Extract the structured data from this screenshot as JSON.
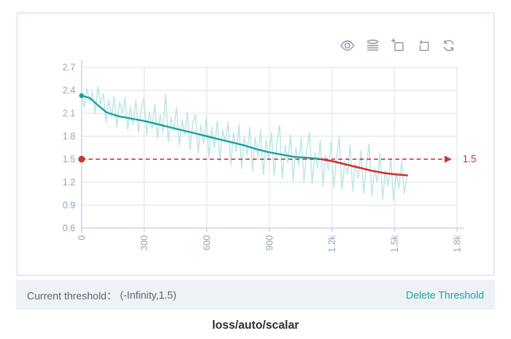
{
  "title": "loss/auto/scalar",
  "toolbar": {
    "icons": [
      {
        "name": "eye-icon"
      },
      {
        "name": "data-view-icon"
      },
      {
        "name": "zoom-select-icon"
      },
      {
        "name": "restore-icon"
      },
      {
        "name": "refresh-icon"
      }
    ]
  },
  "threshold_bar": {
    "label": "Current threshold：",
    "value": "(-Infinity,1.5)",
    "delete_label": "Delete Threshold"
  },
  "colors": {
    "accent_teal": "#17a0a0",
    "raw_line": "#bde7e4",
    "threshold_red": "#c93733",
    "below_threshold_red": "#d3302a",
    "grid": "#e2e3e6",
    "axis": "#c7d1e4",
    "tick_label": "#98a3b8",
    "bar_background": "#eef1f6"
  },
  "chart_data": {
    "type": "line",
    "title": "loss/auto/scalar",
    "xlim": [
      0,
      1800
    ],
    "ylim": [
      0.6,
      2.7
    ],
    "grid": true,
    "x_ticks": [
      {
        "value": 0,
        "label": "0"
      },
      {
        "value": 300,
        "label": "300"
      },
      {
        "value": 600,
        "label": "600"
      },
      {
        "value": 900,
        "label": "900"
      },
      {
        "value": 1200,
        "label": "1.2k"
      },
      {
        "value": 1500,
        "label": "1.5k"
      },
      {
        "value": 1800,
        "label": "1.8k"
      }
    ],
    "y_ticks": [
      {
        "value": 2.7,
        "label": "2.7"
      },
      {
        "value": 2.4,
        "label": "2.4"
      },
      {
        "value": 2.1,
        "label": "2.1"
      },
      {
        "value": 1.8,
        "label": "1.8"
      },
      {
        "value": 1.5,
        "label": "1.5"
      },
      {
        "value": 1.2,
        "label": "1.2"
      },
      {
        "value": 0.9,
        "label": "0.9"
      },
      {
        "value": 0.6,
        "label": "0.6"
      }
    ],
    "threshold": {
      "value": 1.5,
      "label": "1.5",
      "start_x": 0,
      "end_x": 1740,
      "color": "#c93733",
      "dot": true,
      "arrow": true
    },
    "series": [
      {
        "name": "raw-scalar",
        "color": "#bde7e4",
        "width": 1.4,
        "opacity": 1,
        "points": [
          [
            0,
            2.36
          ],
          [
            13,
            2.18
          ],
          [
            26,
            2.42
          ],
          [
            39,
            2.25
          ],
          [
            52,
            2.38
          ],
          [
            65,
            2.1
          ],
          [
            78,
            2.45
          ],
          [
            91,
            2.22
          ],
          [
            104,
            2.35
          ],
          [
            117,
            1.98
          ],
          [
            130,
            2.28
          ],
          [
            143,
            2.05
          ],
          [
            156,
            2.32
          ],
          [
            169,
            1.92
          ],
          [
            182,
            2.25
          ],
          [
            195,
            2.1
          ],
          [
            208,
            2.3
          ],
          [
            221,
            1.88
          ],
          [
            234,
            2.18
          ],
          [
            247,
            1.95
          ],
          [
            260,
            2.28
          ],
          [
            273,
            1.85
          ],
          [
            286,
            2.15
          ],
          [
            299,
            2.3
          ],
          [
            312,
            1.82
          ],
          [
            325,
            2.12
          ],
          [
            338,
            1.9
          ],
          [
            351,
            2.22
          ],
          [
            364,
            1.78
          ],
          [
            377,
            2.08
          ],
          [
            390,
            1.85
          ],
          [
            403,
            2.35
          ],
          [
            416,
            1.72
          ],
          [
            429,
            2.05
          ],
          [
            442,
            1.88
          ],
          [
            455,
            2.18
          ],
          [
            468,
            1.68
          ],
          [
            481,
            2.02
          ],
          [
            494,
            1.82
          ],
          [
            507,
            2.12
          ],
          [
            520,
            1.62
          ],
          [
            533,
            1.98
          ],
          [
            546,
            2.08
          ],
          [
            559,
            1.58
          ],
          [
            572,
            1.95
          ],
          [
            585,
            1.7
          ],
          [
            598,
            2.05
          ],
          [
            611,
            1.52
          ],
          [
            624,
            1.92
          ],
          [
            637,
            1.65
          ],
          [
            650,
            2.0
          ],
          [
            663,
            1.48
          ],
          [
            676,
            1.88
          ],
          [
            689,
            1.72
          ],
          [
            702,
            1.98
          ],
          [
            715,
            1.42
          ],
          [
            728,
            1.85
          ],
          [
            741,
            1.6
          ],
          [
            754,
            1.95
          ],
          [
            767,
            1.38
          ],
          [
            780,
            1.8
          ],
          [
            793,
            1.55
          ],
          [
            806,
            1.92
          ],
          [
            819,
            1.35
          ],
          [
            832,
            1.78
          ],
          [
            845,
            1.52
          ],
          [
            858,
            1.88
          ],
          [
            871,
            1.3
          ],
          [
            884,
            1.75
          ],
          [
            897,
            1.48
          ],
          [
            910,
            1.85
          ],
          [
            923,
            1.28
          ],
          [
            936,
            1.72
          ],
          [
            949,
            1.95
          ],
          [
            962,
            1.25
          ],
          [
            975,
            1.68
          ],
          [
            988,
            1.45
          ],
          [
            1001,
            1.82
          ],
          [
            1014,
            1.22
          ],
          [
            1027,
            1.65
          ],
          [
            1040,
            1.42
          ],
          [
            1053,
            1.78
          ],
          [
            1066,
            1.2
          ],
          [
            1079,
            1.62
          ],
          [
            1092,
            1.85
          ],
          [
            1105,
            1.18
          ],
          [
            1118,
            1.58
          ],
          [
            1131,
            1.38
          ],
          [
            1144,
            1.75
          ],
          [
            1157,
            1.15
          ],
          [
            1170,
            1.55
          ],
          [
            1183,
            1.35
          ],
          [
            1196,
            1.72
          ],
          [
            1209,
            1.12
          ],
          [
            1222,
            1.52
          ],
          [
            1235,
            1.78
          ],
          [
            1248,
            1.1
          ],
          [
            1261,
            1.48
          ],
          [
            1274,
            1.3
          ],
          [
            1287,
            1.68
          ],
          [
            1300,
            1.08
          ],
          [
            1313,
            1.45
          ],
          [
            1326,
            1.25
          ],
          [
            1339,
            1.62
          ],
          [
            1352,
            1.05
          ],
          [
            1365,
            1.42
          ],
          [
            1378,
            1.7
          ],
          [
            1391,
            1.02
          ],
          [
            1404,
            1.38
          ],
          [
            1417,
            1.2
          ],
          [
            1430,
            1.58
          ],
          [
            1443,
            0.98
          ],
          [
            1456,
            1.35
          ],
          [
            1469,
            1.15
          ],
          [
            1482,
            1.52
          ],
          [
            1495,
            0.96
          ],
          [
            1508,
            1.32
          ],
          [
            1521,
            1.12
          ],
          [
            1534,
            1.48
          ],
          [
            1547,
            1.05
          ],
          [
            1560,
            1.28
          ]
        ]
      },
      {
        "name": "smoothed-above-threshold",
        "color": "#17a0a0",
        "width": 2.2,
        "start_dot": true,
        "points": [
          [
            0,
            2.33
          ],
          [
            40,
            2.3
          ],
          [
            80,
            2.2
          ],
          [
            120,
            2.11
          ],
          [
            180,
            2.06
          ],
          [
            240,
            2.03
          ],
          [
            300,
            2.0
          ],
          [
            360,
            1.96
          ],
          [
            420,
            1.92
          ],
          [
            480,
            1.88
          ],
          [
            540,
            1.84
          ],
          [
            600,
            1.8
          ],
          [
            660,
            1.76
          ],
          [
            720,
            1.72
          ],
          [
            780,
            1.68
          ],
          [
            840,
            1.63
          ],
          [
            900,
            1.59
          ],
          [
            960,
            1.56
          ],
          [
            1020,
            1.53
          ],
          [
            1080,
            1.52
          ],
          [
            1150,
            1.5
          ]
        ]
      },
      {
        "name": "smoothed-below-threshold",
        "color": "#d3302a",
        "width": 2.4,
        "points": [
          [
            1150,
            1.5
          ],
          [
            1210,
            1.47
          ],
          [
            1270,
            1.43
          ],
          [
            1330,
            1.39
          ],
          [
            1390,
            1.35
          ],
          [
            1450,
            1.32
          ],
          [
            1510,
            1.3
          ],
          [
            1560,
            1.29
          ]
        ]
      }
    ]
  }
}
